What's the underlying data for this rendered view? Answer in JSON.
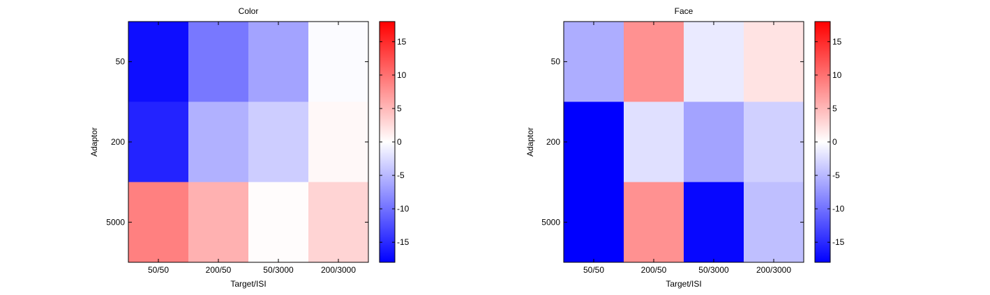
{
  "chart_data": [
    {
      "type": "heatmap",
      "title": "Color",
      "xlabel": "Target/ISI",
      "ylabel": "Adaptor",
      "categories_x": [
        "50/50",
        "200/50",
        "50/3000",
        "200/3000"
      ],
      "categories_y": [
        "50",
        "200",
        "5000"
      ],
      "values": [
        [
          -17,
          -9.5,
          -6.5,
          -0.3
        ],
        [
          -15.5,
          -5.5,
          -3.5,
          0.5
        ],
        [
          9,
          5.5,
          0.2,
          3
        ]
      ],
      "colorbar": {
        "range": [
          -18,
          18
        ],
        "ticks": [
          -15,
          -10,
          -5,
          0,
          5,
          10,
          15
        ],
        "colormap": [
          "#0000ff",
          "#ffffff",
          "#ff0000"
        ]
      }
    },
    {
      "type": "heatmap",
      "title": "Face",
      "xlabel": "Target/ISI",
      "ylabel": "Adaptor",
      "categories_x": [
        "50/50",
        "200/50",
        "50/3000",
        "200/3000"
      ],
      "categories_y": [
        "50",
        "200",
        "5000"
      ],
      "values": [
        [
          -5.8,
          7.8,
          -1.5,
          2
        ],
        [
          -18,
          -2.2,
          -6.5,
          -3.3
        ],
        [
          -18,
          7.8,
          -17.5,
          -4.5
        ]
      ],
      "colorbar": {
        "range": [
          -18,
          18
        ],
        "ticks": [
          -15,
          -10,
          -5,
          0,
          5,
          10,
          15
        ],
        "colormap": [
          "#0000ff",
          "#ffffff",
          "#ff0000"
        ]
      }
    }
  ]
}
